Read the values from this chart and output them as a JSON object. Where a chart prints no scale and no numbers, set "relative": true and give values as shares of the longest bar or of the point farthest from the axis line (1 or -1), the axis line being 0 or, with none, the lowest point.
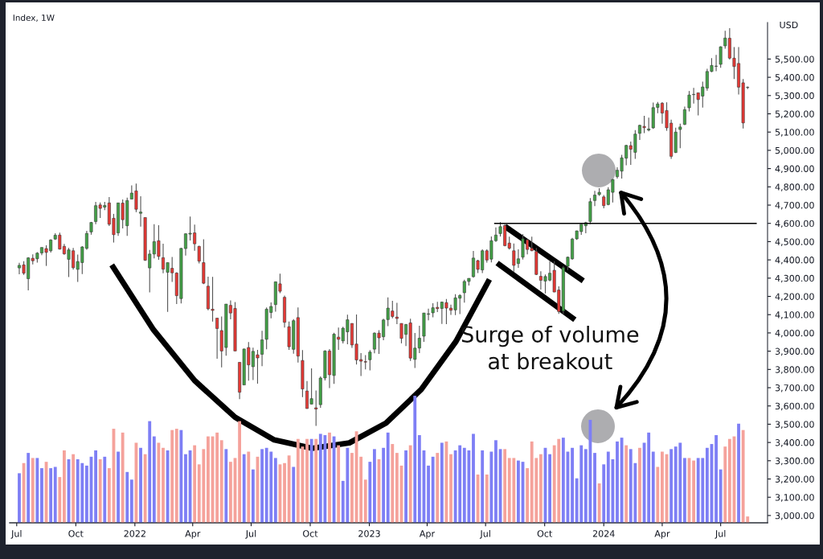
{
  "chart_data": [
    {
      "type": "candlestick",
      "title": "Index, 1W",
      "ylabel": "USD",
      "grid": false,
      "x": [
        "2021-07-05",
        "2021-07-12",
        "2021-07-19",
        "2021-07-26",
        "2021-08-02",
        "2021-08-09",
        "2021-08-16",
        "2021-08-23",
        "2021-08-30",
        "2021-09-06",
        "2021-09-13",
        "2021-09-20",
        "2021-09-27",
        "2021-10-04",
        "2021-10-11",
        "2021-10-18",
        "2021-10-25",
        "2021-11-01",
        "2021-11-08",
        "2021-11-15",
        "2021-11-22",
        "2021-11-29",
        "2021-12-06",
        "2021-12-13",
        "2021-12-20",
        "2021-12-27",
        "2022-01-03",
        "2022-01-10",
        "2022-01-17",
        "2022-01-24",
        "2022-01-31",
        "2022-02-07",
        "2022-02-14",
        "2022-02-21",
        "2022-02-28",
        "2022-03-07",
        "2022-03-14",
        "2022-03-21",
        "2022-03-28",
        "2022-04-04",
        "2022-04-11",
        "2022-04-18",
        "2022-04-25",
        "2022-05-02",
        "2022-05-09",
        "2022-05-16",
        "2022-05-23",
        "2022-05-30",
        "2022-06-06",
        "2022-06-13",
        "2022-06-20",
        "2022-06-27",
        "2022-07-04",
        "2022-07-11",
        "2022-07-18",
        "2022-07-25",
        "2022-08-01",
        "2022-08-08",
        "2022-08-15",
        "2022-08-22",
        "2022-08-29",
        "2022-09-05",
        "2022-09-12",
        "2022-09-19",
        "2022-09-26",
        "2022-10-03",
        "2022-10-10",
        "2022-10-17",
        "2022-10-24",
        "2022-10-31",
        "2022-11-07",
        "2022-11-14",
        "2022-11-21",
        "2022-11-28",
        "2022-12-05",
        "2022-12-12",
        "2022-12-19",
        "2022-12-26",
        "2023-01-02",
        "2023-01-09",
        "2023-01-16",
        "2023-01-23",
        "2023-01-30",
        "2023-02-06",
        "2023-02-13",
        "2023-02-20",
        "2023-02-27",
        "2023-03-06",
        "2023-03-13",
        "2023-03-20",
        "2023-03-27",
        "2023-04-03",
        "2023-04-10",
        "2023-04-17",
        "2023-04-24",
        "2023-05-01",
        "2023-05-08",
        "2023-05-15",
        "2023-05-22",
        "2023-05-29",
        "2023-06-05",
        "2023-06-12",
        "2023-06-19",
        "2023-06-26",
        "2023-07-03",
        "2023-07-10",
        "2023-07-17",
        "2023-07-24",
        "2023-07-31",
        "2023-08-07",
        "2023-08-14",
        "2023-08-21",
        "2023-08-28",
        "2023-09-04",
        "2023-09-11",
        "2023-09-18",
        "2023-09-25",
        "2023-10-02",
        "2023-10-09",
        "2023-10-16",
        "2023-10-23",
        "2023-10-30",
        "2023-11-06",
        "2023-11-13",
        "2023-11-20",
        "2023-11-27",
        "2023-12-04",
        "2023-12-11",
        "2023-12-18",
        "2023-12-25",
        "2024-01-01",
        "2024-01-08",
        "2024-01-15",
        "2024-01-22",
        "2024-01-29",
        "2024-02-05",
        "2024-02-12",
        "2024-02-19",
        "2024-02-26",
        "2024-03-04",
        "2024-03-11",
        "2024-03-18",
        "2024-03-25",
        "2024-04-01",
        "2024-04-08",
        "2024-04-15",
        "2024-04-22",
        "2024-04-29",
        "2024-05-06",
        "2024-05-13",
        "2024-05-20",
        "2024-05-27",
        "2024-06-03",
        "2024-06-10",
        "2024-06-17",
        "2024-06-24",
        "2024-07-01",
        "2024-07-08",
        "2024-07-15",
        "2024-07-22",
        "2024-07-29",
        "2024-08-05",
        "2024-08-12"
      ],
      "ohlc": [
        [
          4356,
          4384,
          4321,
          4370
        ],
        [
          4373,
          4393,
          4318,
          4327
        ],
        [
          4297,
          4415,
          4233,
          4411
        ],
        [
          4409,
          4430,
          4375,
          4395
        ],
        [
          4406,
          4442,
          4385,
          4437
        ],
        [
          4438,
          4469,
          4426,
          4468
        ],
        [
          4462,
          4480,
          4367,
          4441
        ],
        [
          4450,
          4513,
          4440,
          4509
        ],
        [
          4514,
          4546,
          4509,
          4535
        ],
        [
          4536,
          4549,
          4457,
          4459
        ],
        [
          4474,
          4487,
          4428,
          4433
        ],
        [
          4403,
          4466,
          4306,
          4455
        ],
        [
          4450,
          4466,
          4347,
          4357
        ],
        [
          4348,
          4429,
          4279,
          4391
        ],
        [
          4385,
          4475,
          4322,
          4471
        ],
        [
          4463,
          4559,
          4456,
          4545
        ],
        [
          4553,
          4608,
          4538,
          4605
        ],
        [
          4610,
          4718,
          4595,
          4697
        ],
        [
          4701,
          4714,
          4630,
          4682
        ],
        [
          4689,
          4718,
          4672,
          4698
        ],
        [
          4712,
          4744,
          4585,
          4595
        ],
        [
          4628,
          4652,
          4495,
          4538
        ],
        [
          4548,
          4713,
          4532,
          4712
        ],
        [
          4711,
          4731,
          4572,
          4620
        ],
        [
          4587,
          4741,
          4531,
          4725
        ],
        [
          4733,
          4808,
          4733,
          4766
        ],
        [
          4778,
          4818,
          4662,
          4677
        ],
        [
          4655,
          4749,
          4582,
          4662
        ],
        [
          4632,
          4632,
          4395,
          4398
        ],
        [
          4356,
          4454,
          4222,
          4432
        ],
        [
          4432,
          4595,
          4408,
          4500
        ],
        [
          4505,
          4590,
          4401,
          4419
        ],
        [
          4412,
          4489,
          4327,
          4349
        ],
        [
          4332,
          4385,
          4115,
          4385
        ],
        [
          4354,
          4416,
          4279,
          4329
        ],
        [
          4328,
          4332,
          4158,
          4204
        ],
        [
          4188,
          4465,
          4162,
          4463
        ],
        [
          4462,
          4546,
          4424,
          4543
        ],
        [
          4541,
          4637,
          4506,
          4546
        ],
        [
          4548,
          4593,
          4450,
          4488
        ],
        [
          4474,
          4478,
          4381,
          4393
        ],
        [
          4385,
          4513,
          4267,
          4272
        ],
        [
          4256,
          4308,
          4124,
          4132
        ],
        [
          4130,
          4307,
          4062,
          4123
        ],
        [
          4081,
          4081,
          3859,
          4024
        ],
        [
          4013,
          4090,
          3811,
          3901
        ],
        [
          3920,
          4158,
          3875,
          4158
        ],
        [
          4151,
          4178,
          4074,
          4109
        ],
        [
          4134,
          4169,
          3901,
          3901
        ],
        [
          3839,
          3839,
          3637,
          3675
        ],
        [
          3715,
          3914,
          3715,
          3912
        ],
        [
          3920,
          3950,
          3739,
          3825
        ],
        [
          3815,
          3919,
          3742,
          3899
        ],
        [
          3880,
          3907,
          3722,
          3863
        ],
        [
          3883,
          4012,
          3818,
          3962
        ],
        [
          3965,
          4140,
          3910,
          4130
        ],
        [
          4112,
          4167,
          4080,
          4145
        ],
        [
          4155,
          4281,
          4116,
          4280
        ],
        [
          4269,
          4325,
          4218,
          4228
        ],
        [
          4195,
          4204,
          4029,
          4058
        ],
        [
          4034,
          4062,
          3907,
          3924
        ],
        [
          3910,
          4076,
          3886,
          4067
        ],
        [
          4084,
          4140,
          3838,
          3873
        ],
        [
          3849,
          3906,
          3648,
          3693
        ],
        [
          3682,
          3736,
          3584,
          3586
        ],
        [
          3610,
          3806,
          3610,
          3640
        ],
        [
          3590,
          3685,
          3491,
          3583
        ],
        [
          3607,
          3762,
          3590,
          3753
        ],
        [
          3753,
          3905,
          3740,
          3901
        ],
        [
          3901,
          3911,
          3698,
          3771
        ],
        [
          3767,
          4001,
          3721,
          3993
        ],
        [
          3977,
          4029,
          3907,
          3965
        ],
        [
          3956,
          4034,
          3942,
          4026
        ],
        [
          4006,
          4100,
          3938,
          4072
        ],
        [
          4052,
          4052,
          3918,
          3934
        ],
        [
          3939,
          4101,
          3827,
          3852
        ],
        [
          3854,
          3890,
          3764,
          3845
        ],
        [
          3843,
          3878,
          3800,
          3840
        ],
        [
          3853,
          3906,
          3795,
          3895
        ],
        [
          3911,
          4003,
          3888,
          3999
        ],
        [
          3999,
          4015,
          3885,
          3973
        ],
        [
          3979,
          4078,
          3960,
          4071
        ],
        [
          4073,
          4195,
          4037,
          4136
        ],
        [
          4120,
          4176,
          4080,
          4090
        ],
        [
          4087,
          4165,
          4048,
          4079
        ],
        [
          4052,
          4052,
          3943,
          3970
        ],
        [
          3992,
          4049,
          3928,
          4046
        ],
        [
          4055,
          4078,
          3847,
          3862
        ],
        [
          3855,
          4000,
          3808,
          3917
        ],
        [
          3917,
          4039,
          3889,
          3971
        ],
        [
          3982,
          4110,
          3951,
          4109
        ],
        [
          4102,
          4133,
          4069,
          4105
        ],
        [
          4110,
          4163,
          4085,
          4138
        ],
        [
          4140,
          4170,
          4114,
          4133
        ],
        [
          4134,
          4171,
          4049,
          4169
        ],
        [
          4166,
          4186,
          4048,
          4136
        ],
        [
          4136,
          4155,
          4099,
          4124
        ],
        [
          4126,
          4212,
          4098,
          4192
        ],
        [
          4190,
          4212,
          4103,
          4205
        ],
        [
          4220,
          4291,
          4166,
          4282
        ],
        [
          4282,
          4299,
          4260,
          4299
        ],
        [
          4308,
          4449,
          4302,
          4410
        ],
        [
          4396,
          4400,
          4328,
          4348
        ],
        [
          4345,
          4458,
          4328,
          4450
        ],
        [
          4450,
          4458,
          4385,
          4399
        ],
        [
          4404,
          4528,
          4386,
          4505
        ],
        [
          4505,
          4578,
          4499,
          4536
        ],
        [
          4544,
          4607,
          4528,
          4582
        ],
        [
          4588,
          4595,
          4474,
          4478
        ],
        [
          4492,
          4527,
          4457,
          4464
        ],
        [
          4450,
          4490,
          4335,
          4370
        ],
        [
          4380,
          4458,
          4356,
          4406
        ],
        [
          4415,
          4541,
          4402,
          4516
        ],
        [
          4510,
          4514,
          4430,
          4457
        ],
        [
          4464,
          4527,
          4448,
          4450
        ],
        [
          4446,
          4466,
          4317,
          4320
        ],
        [
          4310,
          4338,
          4238,
          4288
        ],
        [
          4284,
          4320,
          4216,
          4309
        ],
        [
          4289,
          4394,
          4283,
          4327
        ],
        [
          4343,
          4393,
          4223,
          4224
        ],
        [
          4235,
          4255,
          4104,
          4117
        ],
        [
          4120,
          4366,
          4103,
          4358
        ],
        [
          4365,
          4418,
          4344,
          4415
        ],
        [
          4406,
          4521,
          4400,
          4514
        ],
        [
          4515,
          4560,
          4510,
          4559
        ],
        [
          4555,
          4595,
          4537,
          4595
        ],
        [
          4587,
          4609,
          4546,
          4604
        ],
        [
          4610,
          4739,
          4597,
          4719
        ],
        [
          4725,
          4778,
          4695,
          4755
        ],
        [
          4758,
          4793,
          4751,
          4770
        ],
        [
          4745,
          4755,
          4682,
          4697
        ],
        [
          4703,
          4798,
          4699,
          4784
        ],
        [
          4770,
          4843,
          4714,
          4840
        ],
        [
          4856,
          4907,
          4845,
          4891
        ],
        [
          4886,
          4975,
          4845,
          4959
        ],
        [
          4957,
          5030,
          4918,
          5027
        ],
        [
          5026,
          5048,
          4920,
          5006
        ],
        [
          4989,
          5111,
          4953,
          5089
        ],
        [
          5093,
          5140,
          5057,
          5137
        ],
        [
          5131,
          5189,
          5094,
          5124
        ],
        [
          5111,
          5179,
          5104,
          5117
        ],
        [
          5123,
          5262,
          5117,
          5234
        ],
        [
          5235,
          5265,
          5203,
          5254
        ],
        [
          5258,
          5264,
          5146,
          5204
        ],
        [
          5218,
          5263,
          5107,
          5123
        ],
        [
          5149,
          5168,
          4953,
          4967
        ],
        [
          4988,
          5124,
          4985,
          5100
        ],
        [
          5114,
          5146,
          5012,
          5128
        ],
        [
          5142,
          5240,
          5138,
          5223
        ],
        [
          5233,
          5325,
          5213,
          5303
        ],
        [
          5305,
          5342,
          5256,
          5305
        ],
        [
          5315,
          5315,
          5191,
          5278
        ],
        [
          5297,
          5376,
          5234,
          5347
        ],
        [
          5341,
          5447,
          5327,
          5432
        ],
        [
          5432,
          5505,
          5428,
          5465
        ],
        [
          5460,
          5523,
          5433,
          5460
        ],
        [
          5471,
          5570,
          5452,
          5567
        ],
        [
          5572,
          5655,
          5557,
          5615
        ],
        [
          5614,
          5669,
          5497,
          5505
        ],
        [
          5505,
          5566,
          5390,
          5459
        ],
        [
          5476,
          5566,
          5306,
          5346
        ],
        [
          5370,
          5390,
          5120,
          5150
        ],
        [
          5344,
          5350,
          5335,
          5344
        ]
      ],
      "xlim": [
        "2021-06-20",
        "2024-09-12"
      ],
      "xticks": [
        {
          "value": "2021-07-01",
          "label": "Jul"
        },
        {
          "value": "2021-10-01",
          "label": "Oct"
        },
        {
          "value": "2022-01-01",
          "label": "2022"
        },
        {
          "value": "2022-04-01",
          "label": "Apr"
        },
        {
          "value": "2022-07-01",
          "label": "Jul"
        },
        {
          "value": "2022-10-01",
          "label": "Oct"
        },
        {
          "value": "2023-01-01",
          "label": "2023"
        },
        {
          "value": "2023-04-01",
          "label": "Apr"
        },
        {
          "value": "2023-07-01",
          "label": "Jul"
        },
        {
          "value": "2023-10-01",
          "label": "Oct"
        },
        {
          "value": "2024-01-01",
          "label": "2024"
        },
        {
          "value": "2024-04-01",
          "label": "Apr"
        },
        {
          "value": "2024-07-01",
          "label": "Jul"
        }
      ],
      "ylim": [
        2960,
        5700
      ],
      "yticks": [
        {
          "value": 3000,
          "label": "3,000.00"
        },
        {
          "value": 3100,
          "label": "3,100.00"
        },
        {
          "value": 3200,
          "label": "3,200.00"
        },
        {
          "value": 3300,
          "label": "3,300.00"
        },
        {
          "value": 3400,
          "label": "3,400.00"
        },
        {
          "value": 3500,
          "label": "3,500.00"
        },
        {
          "value": 3600,
          "label": "3,600.00"
        },
        {
          "value": 3700,
          "label": "3,700.00"
        },
        {
          "value": 3800,
          "label": "3,800.00"
        },
        {
          "value": 3900,
          "label": "3,900.00"
        },
        {
          "value": 4000,
          "label": "4,000.00"
        },
        {
          "value": 4100,
          "label": "4,100.00"
        },
        {
          "value": 4200,
          "label": "4,200.00"
        },
        {
          "value": 4300,
          "label": "4,300.00"
        },
        {
          "value": 4400,
          "label": "4,400.00"
        },
        {
          "value": 4500,
          "label": "4,500.00"
        },
        {
          "value": 4600,
          "label": "4,600.00"
        },
        {
          "value": 4700,
          "label": "4,700.00"
        },
        {
          "value": 4800,
          "label": "4,800.00"
        },
        {
          "value": 4900,
          "label": "4,900.00"
        },
        {
          "value": 5000,
          "label": "5,000.00"
        },
        {
          "value": 5100,
          "label": "5,100.00"
        },
        {
          "value": 5200,
          "label": "5,200.00"
        },
        {
          "value": 5300,
          "label": "5,300.00"
        },
        {
          "value": 5400,
          "label": "5,400.00"
        },
        {
          "value": 5500,
          "label": "5,500.00"
        }
      ],
      "ref_lines": [
        {
          "axis": "y",
          "value": 4600,
          "color": "#000000"
        }
      ],
      "series": [
        {
          "type": "line",
          "color": "#000000",
          "x": [
            "2021-11-26",
            "2022-01-30",
            "2022-04-04",
            "2022-06-06",
            "2022-08-06",
            "2022-10-04",
            "2022-12-01",
            "2023-01-27",
            "2023-03-23",
            "2023-05-16",
            "2023-07-07"
          ],
          "values": [
            4372,
            4017,
            3739,
            3538,
            3414,
            3368,
            3398,
            3506,
            3691,
            3954,
            4293
          ]
        },
        {
          "type": "line",
          "color": "#000000",
          "x": [
            "2023-07-31",
            "2023-11-30"
          ],
          "values": [
            4584,
            4285
          ]
        },
        {
          "type": "line",
          "color": "#000000",
          "x": [
            "2023-07-19",
            "2023-11-17"
          ],
          "values": [
            4383,
            4072
          ]
        }
      ],
      "annotations": [
        "Surge of volume\nat breakout"
      ]
    },
    {
      "type": "bar",
      "relative": true,
      "tick_labels": false,
      "grid": false,
      "x": [
        "2021-07-05",
        "2021-07-12",
        "2021-07-19",
        "2021-07-26",
        "2021-08-02",
        "2021-08-09",
        "2021-08-16",
        "2021-08-23",
        "2021-08-30",
        "2021-09-06",
        "2021-09-13",
        "2021-09-20",
        "2021-09-27",
        "2021-10-04",
        "2021-10-11",
        "2021-10-18",
        "2021-10-25",
        "2021-11-01",
        "2021-11-08",
        "2021-11-15",
        "2021-11-22",
        "2021-11-29",
        "2021-12-06",
        "2021-12-13",
        "2021-12-20",
        "2021-12-27",
        "2022-01-03",
        "2022-01-10",
        "2022-01-17",
        "2022-01-24",
        "2022-01-31",
        "2022-02-07",
        "2022-02-14",
        "2022-02-21",
        "2022-02-28",
        "2022-03-07",
        "2022-03-14",
        "2022-03-21",
        "2022-03-28",
        "2022-04-04",
        "2022-04-11",
        "2022-04-18",
        "2022-04-25",
        "2022-05-02",
        "2022-05-09",
        "2022-05-16",
        "2022-05-23",
        "2022-05-30",
        "2022-06-06",
        "2022-06-13",
        "2022-06-20",
        "2022-06-27",
        "2022-07-04",
        "2022-07-11",
        "2022-07-18",
        "2022-07-25",
        "2022-08-01",
        "2022-08-08",
        "2022-08-15",
        "2022-08-22",
        "2022-08-29",
        "2022-09-05",
        "2022-09-12",
        "2022-09-19",
        "2022-09-26",
        "2022-10-03",
        "2022-10-10",
        "2022-10-17",
        "2022-10-24",
        "2022-10-31",
        "2022-11-07",
        "2022-11-14",
        "2022-11-21",
        "2022-11-28",
        "2022-12-05",
        "2022-12-12",
        "2022-12-19",
        "2022-12-26",
        "2023-01-02",
        "2023-01-09",
        "2023-01-16",
        "2023-01-23",
        "2023-01-30",
        "2023-02-06",
        "2023-02-13",
        "2023-02-20",
        "2023-02-27",
        "2023-03-06",
        "2023-03-13",
        "2023-03-20",
        "2023-03-27",
        "2023-04-03",
        "2023-04-10",
        "2023-04-17",
        "2023-04-24",
        "2023-05-01",
        "2023-05-08",
        "2023-05-15",
        "2023-05-22",
        "2023-05-29",
        "2023-06-05",
        "2023-06-12",
        "2023-06-19",
        "2023-06-26",
        "2023-07-03",
        "2023-07-10",
        "2023-07-17",
        "2023-07-24",
        "2023-07-31",
        "2023-08-07",
        "2023-08-14",
        "2023-08-21",
        "2023-08-28",
        "2023-09-04",
        "2023-09-11",
        "2023-09-18",
        "2023-09-25",
        "2023-10-02",
        "2023-10-09",
        "2023-10-16",
        "2023-10-23",
        "2023-10-30",
        "2023-11-06",
        "2023-11-13",
        "2023-11-20",
        "2023-11-27",
        "2023-12-04",
        "2023-12-11",
        "2023-12-18",
        "2023-12-25",
        "2024-01-01",
        "2024-01-08",
        "2024-01-15",
        "2024-01-22",
        "2024-01-29",
        "2024-02-05",
        "2024-02-12",
        "2024-02-19",
        "2024-02-26",
        "2024-03-04",
        "2024-03-11",
        "2024-03-18",
        "2024-03-25",
        "2024-04-01",
        "2024-04-08",
        "2024-04-15",
        "2024-04-22",
        "2024-04-29",
        "2024-05-06",
        "2024-05-13",
        "2024-05-20",
        "2024-05-27",
        "2024-06-03",
        "2024-06-10",
        "2024-06-17",
        "2024-06-24",
        "2024-07-01",
        "2024-07-08",
        "2024-07-15",
        "2024-07-22",
        "2024-07-29",
        "2024-08-05",
        "2024-08-12"
      ],
      "xlim": [
        "2021-06-20",
        "2024-09-12"
      ],
      "series": [
        {
          "values": [
            0.39,
            0.47,
            0.55,
            0.51,
            0.51,
            0.43,
            0.48,
            0.43,
            0.44,
            0.36,
            0.57,
            0.5,
            0.54,
            0.5,
            0.47,
            0.45,
            0.52,
            0.57,
            0.5,
            0.52,
            0.43,
            0.74,
            0.56,
            0.71,
            0.4,
            0.34,
            0.63,
            0.59,
            0.54,
            0.8,
            0.68,
            0.63,
            0.59,
            0.57,
            0.73,
            0.74,
            0.73,
            0.54,
            0.57,
            0.61,
            0.46,
            0.58,
            0.68,
            0.68,
            0.71,
            0.65,
            0.58,
            0.48,
            0.51,
            0.8,
            0.54,
            0.56,
            0.42,
            0.52,
            0.58,
            0.59,
            0.56,
            0.51,
            0.46,
            0.47,
            0.53,
            0.44,
            0.66,
            0.6,
            0.66,
            0.66,
            0.66,
            0.7,
            0.69,
            0.71,
            0.68,
            0.61,
            0.33,
            0.59,
            0.55,
            0.72,
            0.52,
            0.34,
            0.48,
            0.58,
            0.5,
            0.59,
            0.71,
            0.62,
            0.55,
            0.45,
            0.57,
            0.61,
            1,
            0.69,
            0.57,
            0.45,
            0.52,
            0.55,
            0.63,
            0.64,
            0.54,
            0.57,
            0.61,
            0.59,
            0.57,
            0.7,
            0.38,
            0.57,
            0.38,
            0.56,
            0.65,
            0.58,
            0.58,
            0.51,
            0.51,
            0.49,
            0.48,
            0.43,
            0.64,
            0.51,
            0.54,
            0.59,
            0.54,
            0.61,
            0.66,
            0.67,
            0.56,
            0.59,
            0.35,
            0.61,
            0.58,
            0.81,
            0.55,
            0.31,
            0.46,
            0.56,
            0.5,
            0.64,
            0.67,
            0.61,
            0.58,
            0.47,
            0.59,
            0.63,
            0.71,
            0.56,
            0.44,
            0.56,
            0.54,
            0.58,
            0.6,
            0.63,
            0.51,
            0.51,
            0.49,
            0.51,
            0.51,
            0.59,
            0.62,
            0.69,
            0.42,
            0.6,
            0.66,
            0.68,
            0.78,
            0.73,
            0.05
          ],
          "colors": [
            "#7e7ff5",
            "#f5a29b",
            "#7e7ff5",
            "#f5a29b",
            "#7e7ff5",
            "#7e7ff5",
            "#f5a29b",
            "#7e7ff5",
            "#7e7ff5",
            "#f5a29b",
            "#f5a29b",
            "#7e7ff5",
            "#f5a29b",
            "#7e7ff5",
            "#7e7ff5",
            "#7e7ff5",
            "#7e7ff5",
            "#7e7ff5",
            "#f5a29b",
            "#7e7ff5",
            "#f5a29b",
            "#f5a29b",
            "#7e7ff5",
            "#f5a29b",
            "#7e7ff5",
            "#7e7ff5",
            "#f5a29b",
            "#7e7ff5",
            "#f5a29b",
            "#7e7ff5",
            "#7e7ff5",
            "#f5a29b",
            "#f5a29b",
            "#7e7ff5",
            "#f5a29b",
            "#f5a29b",
            "#7e7ff5",
            "#7e7ff5",
            "#7e7ff5",
            "#f5a29b",
            "#f5a29b",
            "#f5a29b",
            "#f5a29b",
            "#f5a29b",
            "#f5a29b",
            "#f5a29b",
            "#7e7ff5",
            "#f5a29b",
            "#f5a29b",
            "#f5a29b",
            "#7e7ff5",
            "#f5a29b",
            "#7e7ff5",
            "#f5a29b",
            "#7e7ff5",
            "#7e7ff5",
            "#7e7ff5",
            "#7e7ff5",
            "#f5a29b",
            "#f5a29b",
            "#f5a29b",
            "#7e7ff5",
            "#f5a29b",
            "#f5a29b",
            "#f5a29b",
            "#7e7ff5",
            "#f5a29b",
            "#7e7ff5",
            "#7e7ff5",
            "#f5a29b",
            "#7e7ff5",
            "#f5a29b",
            "#7e7ff5",
            "#7e7ff5",
            "#f5a29b",
            "#f5a29b",
            "#f5a29b",
            "#f5a29b",
            "#7e7ff5",
            "#7e7ff5",
            "#f5a29b",
            "#7e7ff5",
            "#7e7ff5",
            "#f5a29b",
            "#f5a29b",
            "#f5a29b",
            "#7e7ff5",
            "#f5a29b",
            "#7e7ff5",
            "#7e7ff5",
            "#7e7ff5",
            "#7e7ff5",
            "#7e7ff5",
            "#f5a29b",
            "#7e7ff5",
            "#f5a29b",
            "#f5a29b",
            "#7e7ff5",
            "#7e7ff5",
            "#7e7ff5",
            "#7e7ff5",
            "#7e7ff5",
            "#f5a29b",
            "#7e7ff5",
            "#f5a29b",
            "#7e7ff5",
            "#7e7ff5",
            "#7e7ff5",
            "#f5a29b",
            "#f5a29b",
            "#f5a29b",
            "#7e7ff5",
            "#7e7ff5",
            "#f5a29b",
            "#f5a29b",
            "#f5a29b",
            "#f5a29b",
            "#7e7ff5",
            "#7e7ff5",
            "#f5a29b",
            "#f5a29b",
            "#7e7ff5",
            "#7e7ff5",
            "#7e7ff5",
            "#7e7ff5",
            "#7e7ff5",
            "#7e7ff5",
            "#7e7ff5",
            "#7e7ff5",
            "#f5a29b",
            "#7e7ff5",
            "#7e7ff5",
            "#7e7ff5",
            "#7e7ff5",
            "#7e7ff5",
            "#f5a29b",
            "#7e7ff5",
            "#7e7ff5",
            "#f5a29b",
            "#7e7ff5",
            "#7e7ff5",
            "#7e7ff5",
            "#f5a29b",
            "#f5a29b",
            "#f5a29b",
            "#7e7ff5",
            "#7e7ff5",
            "#7e7ff5",
            "#7e7ff5",
            "#f5a29b",
            "#f5a29b",
            "#7e7ff5",
            "#7e7ff5",
            "#7e7ff5",
            "#7e7ff5",
            "#7e7ff5",
            "#7e7ff5",
            "#f5a29b",
            "#f5a29b",
            "#f5a29b",
            "#7e7ff5",
            "#f5a29b",
            "#f5a29b"
          ]
        }
      ]
    }
  ]
}
